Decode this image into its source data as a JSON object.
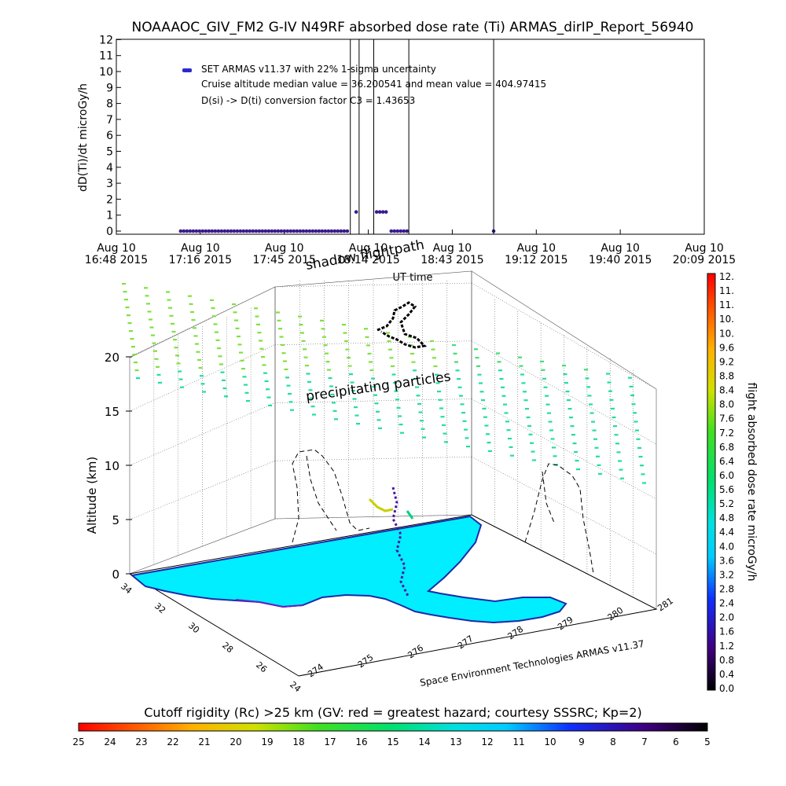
{
  "title": "NOAAAOC_GIV_FM2 G-IV    N49RF   absorbed dose rate (Ti) ARMAS_dirIP_Report_56940",
  "top_chart": {
    "ylabel": "dD(Ti)/dt microGy/h",
    "xlabel": "UT time",
    "legend": {
      "series": "SET ARMAS v11.37 with 22% 1-sigma uncertainty",
      "line2": "Cruise altitude median value = 36.200541 and mean value = 404.97415",
      "line3": "D(si) -> D(ti) conversion factor C3 = 1.43653"
    },
    "x_ticks": [
      {
        "date": "Aug 10",
        "time": "16:48 2015"
      },
      {
        "date": "Aug 10",
        "time": "17:16 2015"
      },
      {
        "date": "Aug 10",
        "time": "17:45 2015"
      },
      {
        "date": "Aug 10",
        "time": "18:14 2015"
      },
      {
        "date": "Aug 10",
        "time": "18:43 2015"
      },
      {
        "date": "Aug 10",
        "time": "19:12 2015"
      },
      {
        "date": "Aug 10",
        "time": "19:40 2015"
      },
      {
        "date": "Aug 10",
        "time": "20:09 2015"
      }
    ],
    "y_ticks": [
      "0",
      "1",
      "2",
      "3",
      "4",
      "5",
      "6",
      "7",
      "8",
      "9",
      "10",
      "11",
      "12"
    ]
  },
  "chart_data": [
    {
      "type": "scatter",
      "title": "NOAAAOC_GIV_FM2 G-IV    N49RF   absorbed dose rate (Ti) ARMAS_dirIP_Report_56940",
      "xlabel": "UT time",
      "ylabel": "dD(Ti)/dt microGy/h",
      "ylim": [
        0,
        12
      ],
      "xlim": [
        "2015-08-10 16:48",
        "2015-08-10 20:09"
      ],
      "series": [
        {
          "name": "SET ARMAS v11.37 with 22% 1-sigma uncertainty",
          "color": "#1a1aff",
          "segments": [
            {
              "x_start": "2015-08-10 17:10",
              "x_end": "2015-08-10 18:07",
              "y": 0
            },
            {
              "x_start": "2015-08-10 18:10",
              "x_end": "2015-08-10 18:11",
              "y": 1.2
            },
            {
              "x_start": "2015-08-10 18:17",
              "x_end": "2015-08-10 18:21",
              "y": 1.2
            },
            {
              "x_start": "2015-08-10 18:22",
              "x_end": "2015-08-10 18:28",
              "y": 0
            },
            {
              "x_start": "2015-08-10 18:57",
              "x_end": "2015-08-10 18:57",
              "y": 0
            }
          ],
          "spikes_above_12_at": [
            "2015-08-10 18:08",
            "2015-08-10 18:11",
            "2015-08-10 18:16",
            "2015-08-10 18:28",
            "2015-08-10 18:57"
          ]
        }
      ]
    },
    {
      "type": "heatmap",
      "description_labels": [
        "shadow flightpath",
        "precipitating particles"
      ],
      "zlabel": "Altitude (km)",
      "z_ticks": [
        "0",
        "5",
        "10",
        "15",
        "20"
      ],
      "lat_ticks": [
        "34",
        "32",
        "30",
        "28",
        "26",
        "24"
      ],
      "lon_ticks": [
        "274",
        "275",
        "276",
        "277",
        "278",
        "279",
        "280",
        "281"
      ],
      "credit": "Space Environment Technologies ARMAS v11.37"
    }
  ],
  "dose_colorbar": {
    "label": "flight absorbed dose rate microGy/h",
    "ticks": [
      "0.0",
      "0.4",
      "0.8",
      "1.2",
      "1.6",
      "2.0",
      "2.4",
      "2.8",
      "3.2",
      "3.6",
      "4.0",
      "4.4",
      "4.8",
      "5.2",
      "5.6",
      "6.0",
      "6.4",
      "6.8",
      "7.2",
      "7.6",
      "8.0",
      "8.4",
      "8.8",
      "9.2",
      "9.6",
      "10.",
      "10.",
      "11.",
      "11.",
      "12."
    ]
  },
  "rigidity_colorbar": {
    "label": "Cutoff rigidity (Rc) >25 km (GV: red = greatest hazard; courtesy SSSRC; Kp=2)",
    "ticks": [
      "25",
      "24",
      "23",
      "22",
      "21",
      "20",
      "19",
      "18",
      "17",
      "16",
      "15",
      "14",
      "13",
      "12",
      "11",
      "10",
      "9",
      "8",
      "7",
      "6",
      "5"
    ]
  },
  "colors": {
    "land": "#00eeff",
    "dots_high": "#7fe03a",
    "dots_mid": "#20e08a",
    "points": "#3a1ab0"
  }
}
